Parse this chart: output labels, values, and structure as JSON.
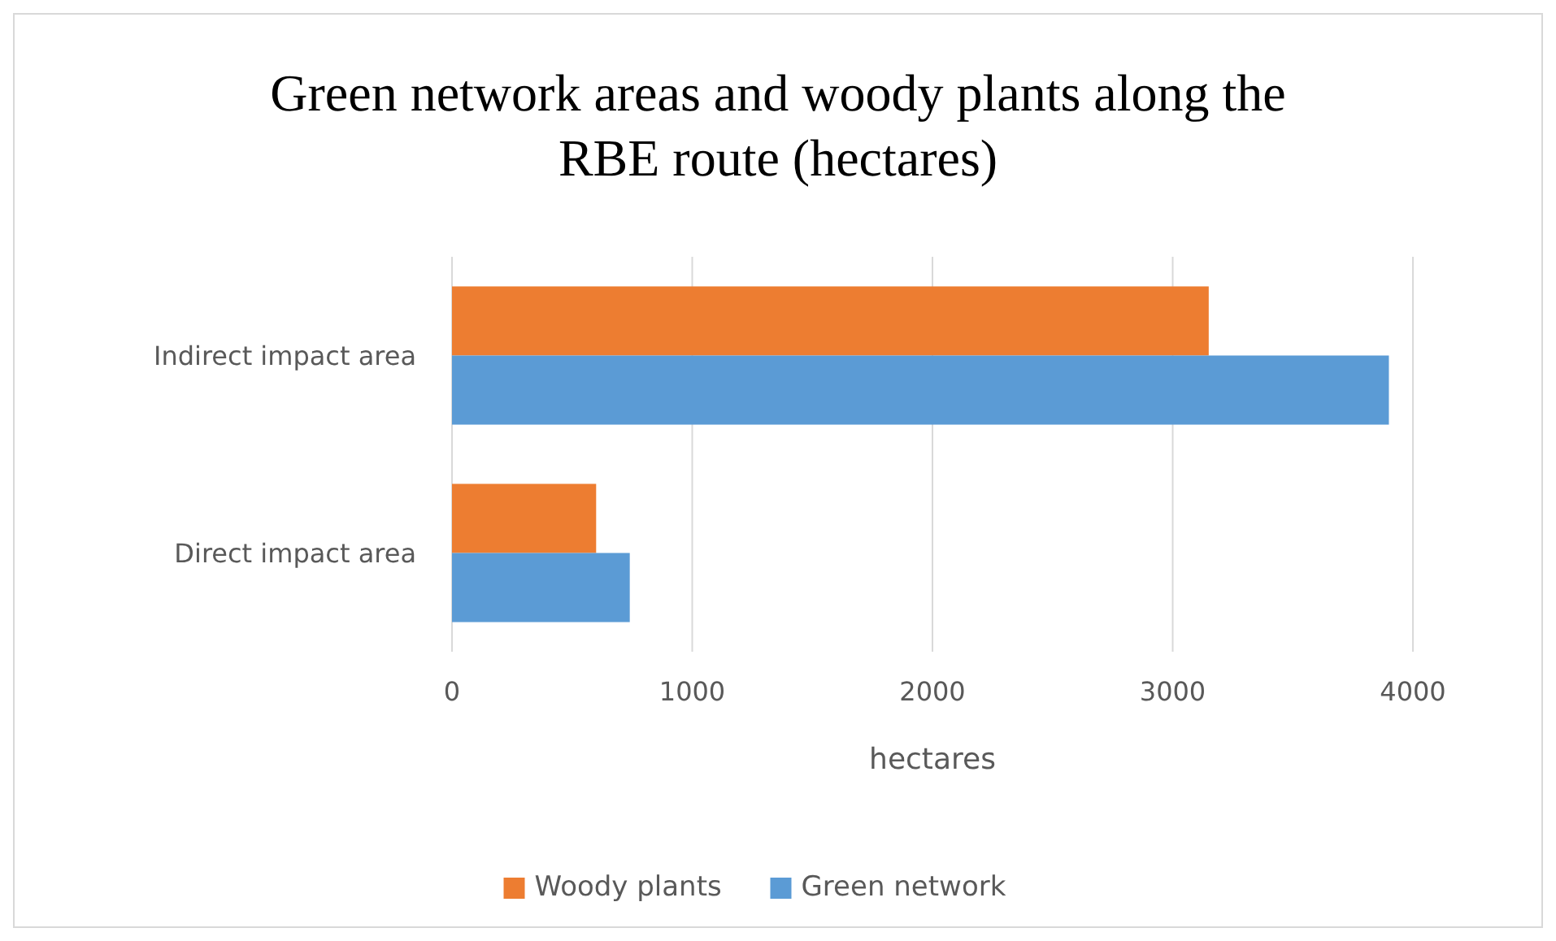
{
  "chart_data": {
    "type": "bar",
    "orientation": "horizontal",
    "title": "Green network areas and woody plants along the RBE route (hectares)",
    "xlabel": "hectares",
    "categories": [
      "Indirect impact area",
      "Direct impact area"
    ],
    "series": [
      {
        "name": "Woody plants",
        "color": "#ed7d31",
        "values": [
          3150,
          600
        ]
      },
      {
        "name": "Green network",
        "color": "#5b9bd5",
        "values": [
          3900,
          740
        ]
      }
    ],
    "xlim": [
      0,
      4000
    ],
    "xticks": [
      0,
      1000,
      2000,
      3000,
      4000
    ],
    "grid": "x",
    "legend": "bottom"
  }
}
